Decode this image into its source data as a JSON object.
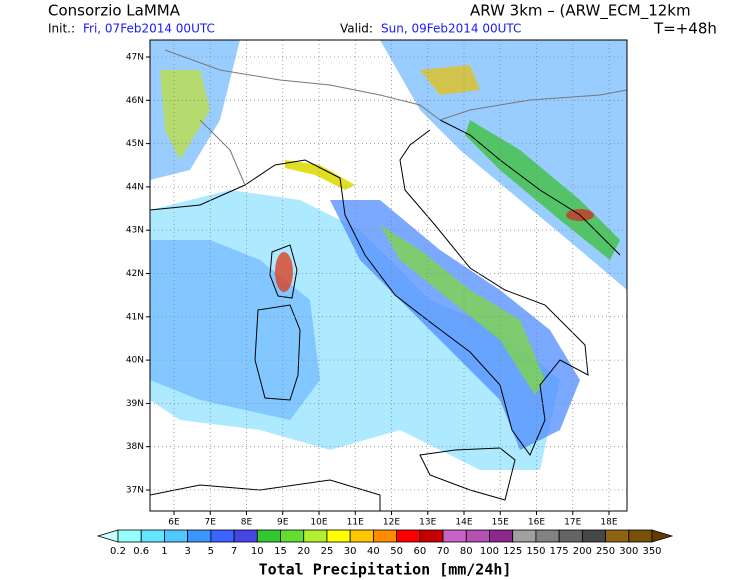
{
  "header": {
    "org": "Consorzio LaMMA",
    "model": "ARW 3km – (ARW_ECM_12km",
    "init_label": "Init.:",
    "init": "Fri, 07Feb2014 00UTC",
    "valid_label": "Valid:",
    "valid": "Sun, 09Feb2014 00UTC",
    "lead": "T=+48h"
  },
  "map": {
    "lat_labels": [
      "47N",
      "46N",
      "45N",
      "44N",
      "43N",
      "42N",
      "41N",
      "40N",
      "39N",
      "38N",
      "37N"
    ],
    "lon_labels": [
      "6E",
      "7E",
      "8E",
      "9E",
      "10E",
      "11E",
      "12E",
      "13E",
      "14E",
      "15E",
      "16E",
      "17E",
      "18E"
    ]
  },
  "colorbar": {
    "title": "Total Precipitation [mm/24h]",
    "labels": [
      "0.2",
      "0.6",
      "1",
      "3",
      "5",
      "7",
      "10",
      "15",
      "20",
      "25",
      "30",
      "40",
      "50",
      "60",
      "70",
      "80",
      "100",
      "125",
      "150",
      "175",
      "200",
      "250",
      "300",
      "350"
    ],
    "colors": [
      "#c8ffff",
      "#96ffff",
      "#64e6ff",
      "#50c8ff",
      "#3c96ff",
      "#3c64ff",
      "#4646e6",
      "#32c832",
      "#64dc32",
      "#b4f032",
      "#ffff00",
      "#ffc800",
      "#ff8c00",
      "#ff0000",
      "#c80000",
      "#c864c8",
      "#b450b4",
      "#8c288c",
      "#a0a0a0",
      "#828282",
      "#646464",
      "#464646",
      "#8c6414",
      "#78500a",
      "#643c00"
    ]
  }
}
